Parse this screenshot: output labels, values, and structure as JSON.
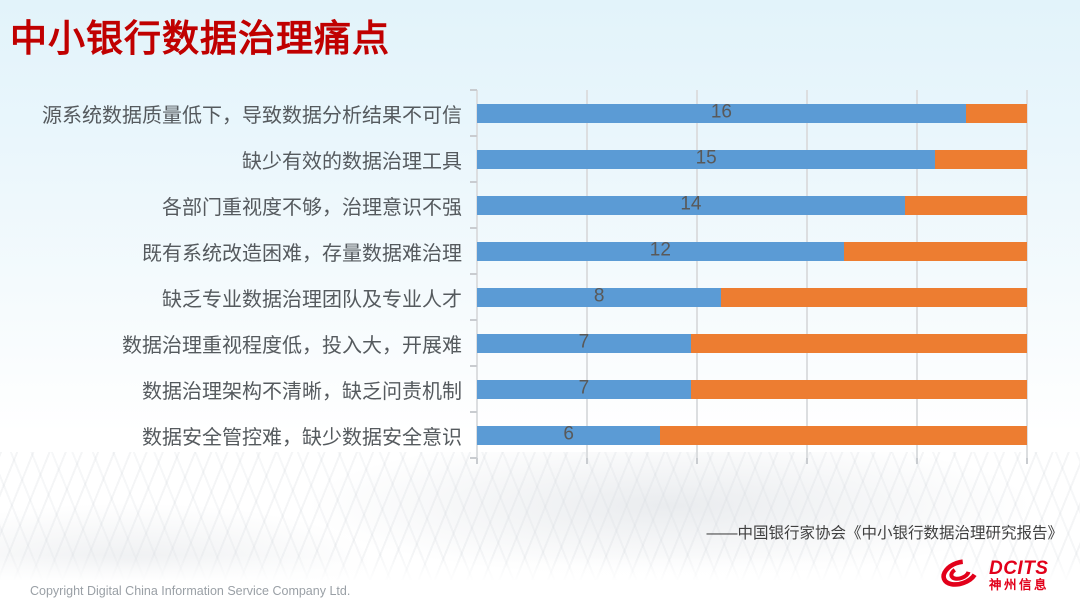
{
  "slide": {
    "title": "中小银行数据治理痛点",
    "source": "——中国银行家协会《中小银行数据治理研究报告》",
    "footer": "Copyright  Digital China Information Service Company Ltd.",
    "logo": {
      "brand": "DCITS",
      "brand_cn": "神州信息",
      "icon": "swirl-icon",
      "color": "#e2001a"
    },
    "colors": {
      "title_red": "#c00000",
      "bar_blue": "#5b9bd5",
      "bar_orange": "#ed7d31",
      "value_label": "#595959",
      "gridline": "#dcdee0"
    }
  },
  "chart_data": {
    "type": "bar",
    "orientation": "horizontal",
    "stacked": true,
    "title": "",
    "xlabel": "",
    "ylabel": "",
    "xlim": [
      0,
      18
    ],
    "gridline_intervals": 5,
    "grid": true,
    "legend": "none",
    "categories": [
      "源系统数据质量低下，导致数据分析结果不可信",
      "缺少有效的数据治理工具",
      "各部门重视度不够，治理意识不强",
      "既有系统改造困难，存量数据难治理",
      "缺乏专业数据治理团队及专业人才",
      "数据治理重视程度低，投入大，开展难",
      "数据治理架构不清晰，缺乏问责机制",
      "数据安全管控难，缺少数据安全意识"
    ],
    "series": [
      {
        "color": "#5b9bd5",
        "values": [
          16,
          15,
          14,
          12,
          8,
          7,
          7,
          6
        ],
        "data_labels": true
      },
      {
        "color": "#ed7d31",
        "values": [
          2,
          3,
          4,
          6,
          10,
          11,
          11,
          12
        ],
        "data_labels": false
      }
    ]
  }
}
